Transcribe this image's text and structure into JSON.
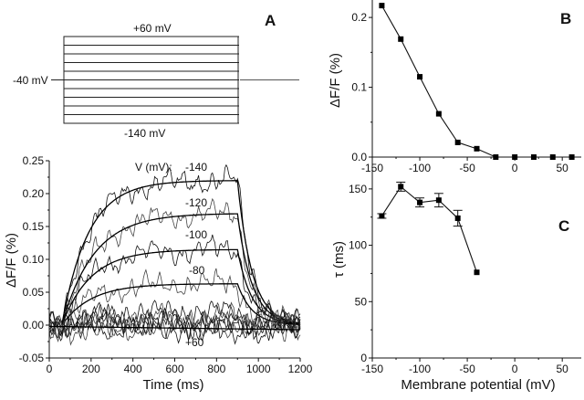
{
  "panel_labels": {
    "a": "A",
    "b": "B",
    "c": "C"
  },
  "protocol": {
    "top_label": "+60 mV",
    "hold_label": "-40 mV",
    "bottom_label": "-140 mV",
    "levels_mV": [
      60,
      40,
      20,
      0,
      -20,
      -40,
      -60,
      -80,
      -100,
      -120,
      -140
    ]
  },
  "chart_data": [
    {
      "id": "traces",
      "type": "line",
      "title": "",
      "xlabel": "Time (ms)",
      "ylabel": "ΔF/F (%)",
      "xlim": [
        0,
        1200
      ],
      "ylim": [
        -0.05,
        0.25
      ],
      "xticks": [
        "0",
        "200",
        "400",
        "600",
        "800",
        "1000",
        "1200"
      ],
      "yticks": [
        "-0.05",
        "0.00",
        "0.05",
        "0.10",
        "0.15",
        "0.20",
        "0.25"
      ],
      "legend_header": "V (mV):",
      "trace_labels": [
        {
          "text": "-140",
          "voltage": -140
        },
        {
          "text": "-120",
          "voltage": -120
        },
        {
          "text": "-100",
          "voltage": -100
        },
        {
          "text": "-80",
          "voltage": -80
        },
        {
          "text": "+60",
          "voltage": 60
        }
      ],
      "pulse_ms": [
        60,
        900
      ],
      "series": [
        {
          "voltage": -140,
          "amplitude": 0.22,
          "fit": true
        },
        {
          "voltage": -120,
          "amplitude": 0.17,
          "fit": true
        },
        {
          "voltage": -100,
          "amplitude": 0.115,
          "fit": true
        },
        {
          "voltage": -80,
          "amplitude": 0.063,
          "fit": true
        },
        {
          "voltage": -60,
          "amplitude": 0.02,
          "fit": false
        },
        {
          "voltage": -40,
          "amplitude": 0.012,
          "fit": false
        },
        {
          "voltage": -20,
          "amplitude": 0.0,
          "fit": false
        },
        {
          "voltage": 0,
          "amplitude": 0.0,
          "fit": false
        },
        {
          "voltage": 20,
          "amplitude": 0.0,
          "fit": false
        },
        {
          "voltage": 40,
          "amplitude": 0.0,
          "fit": false
        },
        {
          "voltage": 60,
          "amplitude": -0.005,
          "fit": true
        }
      ],
      "grid": false
    },
    {
      "id": "B",
      "type": "line",
      "xlabel": "",
      "ylabel": "ΔF/F (%)",
      "xlim": [
        -150,
        70
      ],
      "ylim": [
        0,
        0.225
      ],
      "xticks": [
        -150,
        -100,
        -50,
        0,
        50
      ],
      "yticks": [
        0.0,
        0.1,
        0.2
      ],
      "ytick_labels": [
        "0.0",
        "0.1",
        "0.2"
      ],
      "x": [
        -140,
        -120,
        -100,
        -80,
        -60,
        -40,
        -20,
        0,
        20,
        40,
        60
      ],
      "y": [
        0.217,
        0.169,
        0.115,
        0.062,
        0.021,
        0.012,
        0.0,
        0.0,
        0.0,
        0.0,
        0.0
      ],
      "marker": "square",
      "grid": false
    },
    {
      "id": "C",
      "type": "line",
      "xlabel": "Membrane potential (mV)",
      "ylabel": "τ (ms)",
      "xlim": [
        -150,
        70
      ],
      "ylim": [
        0,
        175
      ],
      "xticks": [
        -150,
        -100,
        -50,
        0,
        50
      ],
      "yticks": [
        0,
        50,
        100,
        150
      ],
      "x": [
        -140,
        -120,
        -100,
        -80,
        -60,
        -40
      ],
      "y": [
        126,
        152,
        138,
        140,
        124,
        76
      ],
      "yerr": [
        2,
        4,
        4,
        6,
        7,
        0
      ],
      "marker": "square",
      "grid": false
    }
  ]
}
